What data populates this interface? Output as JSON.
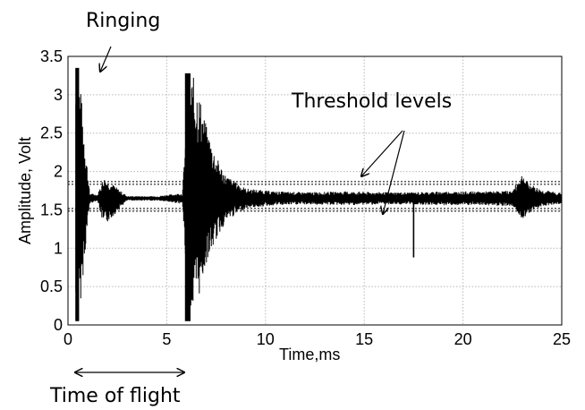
{
  "chart_data": {
    "type": "line",
    "title": "",
    "xlabel": "Time,ms",
    "ylabel": "Amplitude, Volt",
    "xlim": [
      0,
      25
    ],
    "ylim": [
      0,
      3.5
    ],
    "grid": true,
    "legend": "none",
    "x_ticks": [
      "0",
      "5",
      "10",
      "15",
      "20",
      "25"
    ],
    "y_ticks": [
      "0",
      "0.5",
      "1",
      "1.5",
      "2",
      "2.5",
      "3",
      "3.5"
    ],
    "baseline": 1.65,
    "threshold_levels": [
      1.85,
      1.5
    ],
    "series": [
      {
        "x": [
          0.4,
          0.55,
          1.1,
          1.5,
          1.8,
          3.0,
          4.5,
          5.8,
          6.1,
          6.5,
          7.0,
          7.5,
          8.0,
          9.0,
          10.5,
          12.0,
          14.0,
          16.0,
          17.5,
          19.0,
          21.0,
          22.5,
          23.0,
          23.3,
          24.0,
          25.0
        ],
        "upper": [
          3.35,
          3.35,
          1.72,
          1.7,
          1.93,
          1.68,
          1.68,
          1.72,
          3.28,
          3.2,
          2.6,
          2.2,
          1.95,
          1.78,
          1.74,
          1.73,
          1.74,
          1.73,
          1.73,
          1.74,
          1.74,
          1.75,
          1.98,
          1.85,
          1.76,
          1.72
        ],
        "lower": [
          0.05,
          0.05,
          1.58,
          1.62,
          1.28,
          1.62,
          1.62,
          1.58,
          0.05,
          0.2,
          0.8,
          1.1,
          1.35,
          1.52,
          1.56,
          1.57,
          1.56,
          1.57,
          1.57,
          1.56,
          1.56,
          1.55,
          1.38,
          1.45,
          1.55,
          1.58
        ]
      }
    ],
    "spikes": [
      {
        "x": 17.5,
        "min": 0.88,
        "max": 1.68
      }
    ],
    "annotations": {
      "ringing": "Ringing",
      "threshold": "Threshold levels",
      "time_of_flight": "Time of flight"
    }
  }
}
